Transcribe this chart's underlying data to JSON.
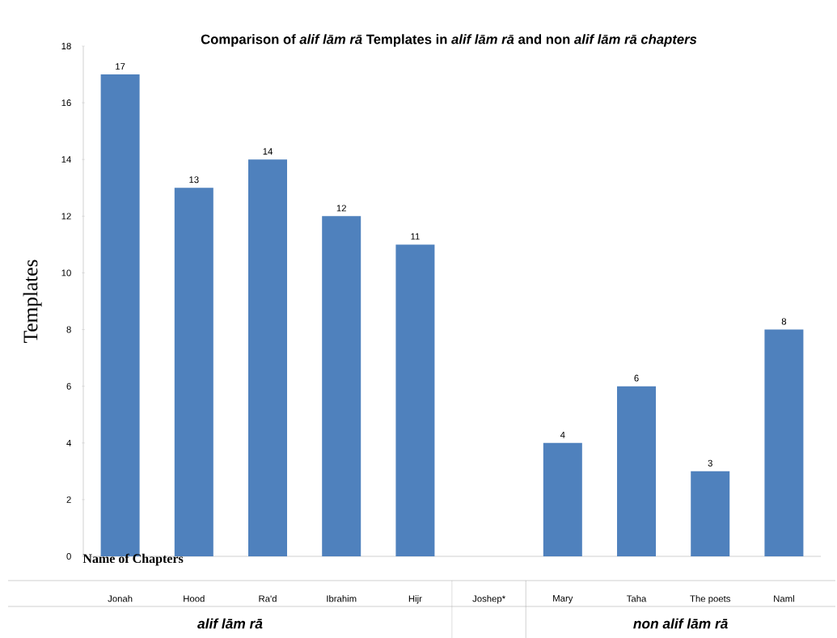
{
  "chart_data": {
    "type": "bar",
    "title": "Comparison of *alif  lām rā* Templates in *alif  lām rā* and non *alif  lām rā chapters*",
    "xlabel": "Name of Chapters",
    "ylabel": "Templates",
    "categories": [
      "Jonah",
      "Hood",
      "Ra'd",
      "Ibrahim",
      "Hijr",
      "Joshep*",
      "Mary",
      "Taha",
      "The poets",
      "Naml"
    ],
    "values": [
      17,
      13,
      14,
      12,
      11,
      null,
      4,
      6,
      3,
      8
    ],
    "color": "#4f81bd",
    "ylim": [
      0,
      18
    ],
    "yticks": [
      0,
      2,
      4,
      6,
      8,
      10,
      12,
      14,
      16,
      18
    ],
    "data_labels": true,
    "annotations": [
      "alif  lām rā",
      "non alif  lām rā"
    ]
  }
}
